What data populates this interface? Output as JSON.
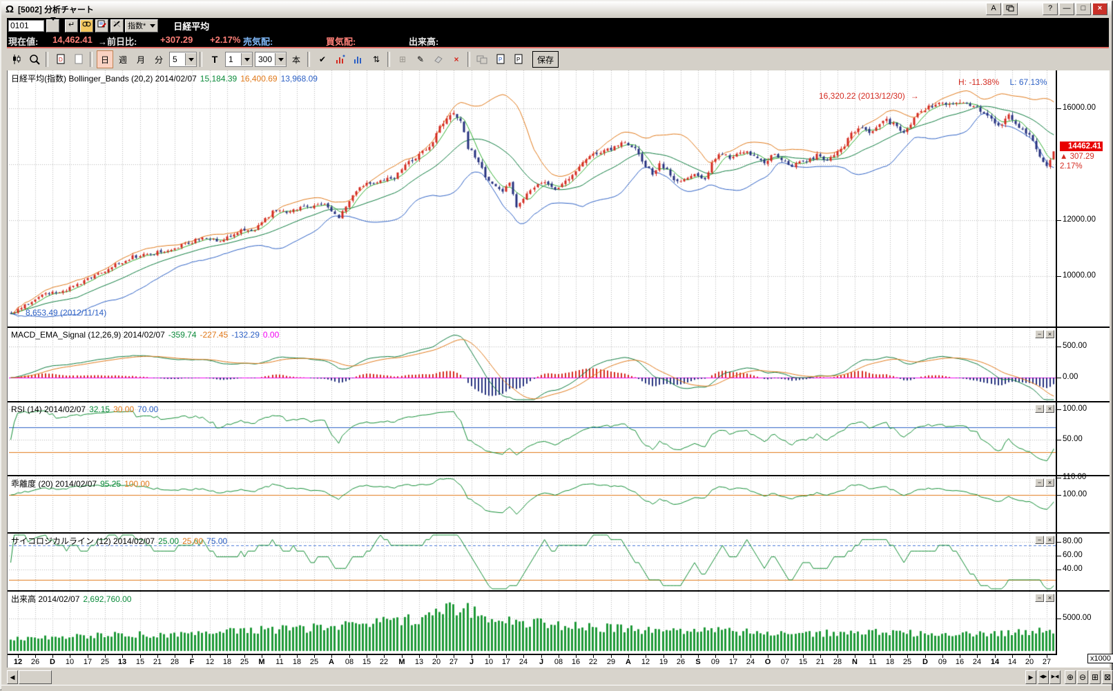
{
  "titlebar": {
    "title": "[5002] 分析チャート",
    "buttons": {
      "a": "A",
      "help": "?",
      "minimize": "—",
      "maximize": "□",
      "close": "×"
    }
  },
  "quote": {
    "code": "0101",
    "type_select": "指数*",
    "name": "日経平均",
    "enter_icon": "↵",
    "label_current": "現在値:",
    "current": "14,462.41",
    "label_change": "→前日比:",
    "change": "+307.29",
    "change_pct": "+2.17%",
    "label_ask": "売気配:",
    "label_bid": "買気配:",
    "label_volume": "出来高:"
  },
  "toolbar": {
    "day": "日",
    "week": "週",
    "month": "月",
    "minute": "分",
    "minute_value": "5",
    "text_t": "T",
    "from_value": "1",
    "bars_value": "300",
    "bars_unit": "本",
    "check": "✔",
    "updown": "⇅",
    "grid": "⊞",
    "pencil": "✎",
    "delete": "×",
    "save": "保存"
  },
  "panels": {
    "price": {
      "title": "日経平均(指数) Bollinger_Bands (20,2) 2014/02/07",
      "v1": "15,184.39",
      "v2": "16,400.69",
      "v3": "13,968.09",
      "high_label": "H: -11.38%",
      "low_label": "L: 67.13%",
      "peak_label": "16,320.22 (2013/12/30)",
      "peak_arrow": "→",
      "trough_arrow": "←",
      "trough_label": "8,653.49 (2012/11/14)",
      "axis": [
        {
          "v": 16000,
          "t": "16000.00"
        },
        {
          "v": 12000,
          "t": "12000.00"
        },
        {
          "v": 10000,
          "t": "10000.00"
        }
      ],
      "box": {
        "price": "14462.41",
        "arrow": "▲",
        "change": "307.29",
        "pct": "2.17%"
      }
    },
    "macd": {
      "title": "MACD_EMA_Signal (12,26,9) 2014/02/07",
      "v1": "-359.74",
      "v2": "-227.45",
      "v3": "-132.29",
      "v4": "0.00",
      "axis": [
        {
          "v": 500,
          "t": "500.00"
        },
        {
          "v": 0,
          "t": "0.00"
        }
      ]
    },
    "rsi": {
      "title": "RSI (14) 2014/02/07",
      "v1": "32.15",
      "v2": "30.00",
      "v3": "70.00",
      "axis": [
        {
          "v": 100,
          "t": "100.00"
        },
        {
          "v": 50,
          "t": "50.00"
        }
      ]
    },
    "kairi": {
      "title": "乖離度 (20) 2014/02/07",
      "v1": "95.25",
      "v2": "100.00",
      "axis": [
        {
          "v": 110,
          "t": "110.00"
        },
        {
          "v": 100,
          "t": "100.00"
        }
      ]
    },
    "psy": {
      "title": "サイコロジカルライン (12) 2014/02/07",
      "v1": "25.00",
      "v2": "25.00",
      "v3": "75.00",
      "axis": [
        {
          "v": 80,
          "t": "80.00"
        },
        {
          "v": 60,
          "t": "60.00"
        },
        {
          "v": 40,
          "t": "40.00"
        }
      ]
    },
    "volume": {
      "title": "出来高 2014/02/07",
      "v1": "2,692,760.00",
      "unit": "x1000",
      "axis": [
        {
          "v": 5000,
          "t": "5000.00"
        }
      ]
    }
  },
  "panel_buttons": {
    "min": "−",
    "close": "×"
  },
  "xaxis": {
    "labels": [
      "12",
      "26",
      "D",
      "10",
      "17",
      "25",
      "13",
      "15",
      "21",
      "28",
      "F",
      "12",
      "18",
      "25",
      "M",
      "11",
      "18",
      "25",
      "A",
      "08",
      "15",
      "22",
      "M",
      "13",
      "20",
      "27",
      "J",
      "10",
      "17",
      "24",
      "J",
      "08",
      "16",
      "22",
      "29",
      "A",
      "12",
      "19",
      "26",
      "S",
      "09",
      "17",
      "24",
      "O",
      "07",
      "15",
      "21",
      "28",
      "N",
      "11",
      "18",
      "25",
      "D",
      "09",
      "16",
      "24",
      "14",
      "14",
      "20",
      "27"
    ],
    "bold": [
      0,
      2,
      6,
      10,
      14,
      18,
      22,
      26,
      30,
      35,
      39,
      43,
      48,
      52,
      56
    ]
  },
  "nav": {
    "left": "◀",
    "right": "▶",
    "expand": "◀▶",
    "compress": "▶◀",
    "zoom_in": "⊕",
    "zoom_out": "⊖",
    "fit": "⊞",
    "close": "⊠"
  },
  "colors": {
    "up": "#d42a20",
    "down": "#27327f",
    "band_upper": "#e07818",
    "band_mid": "#0a7a3c",
    "band_lower": "#2b5fc4",
    "ma_fast": "#2fae2f",
    "macd": "#0a7a3c",
    "signal": "#e07818",
    "hist_pos": "#d42a20",
    "hist_neg": "#27327f",
    "zero": "#f000f0",
    "rsi": "#0f8c32",
    "kairi": "#0f8c32",
    "psy": "#0f8c32",
    "volume": "#1f9a38",
    "grid": "#b4b4b4",
    "current_box": "#e80000"
  },
  "chart_data": {
    "type": "candlestick",
    "bars": 300,
    "instrument": "日経平均 (Nikkei 225)",
    "as_of": "2014/02/07",
    "last": {
      "open": 14155.12,
      "close": 14462.41,
      "change": 307.29,
      "change_pct": 2.17
    },
    "period_high": {
      "value": 16320.22,
      "date": "2013/12/30",
      "pct_from_current": -11.38
    },
    "period_low": {
      "value": 8653.49,
      "date": "2012/11/14",
      "pct_from_current": 67.13
    },
    "peak_index": 272,
    "close_anchors": [
      [
        0,
        8653
      ],
      [
        5,
        9024
      ],
      [
        10,
        9366
      ],
      [
        15,
        9446
      ],
      [
        20,
        9737
      ],
      [
        25,
        10080
      ],
      [
        30,
        10395
      ],
      [
        35,
        10688
      ],
      [
        40,
        10801
      ],
      [
        45,
        10926
      ],
      [
        50,
        11153
      ],
      [
        55,
        11369
      ],
      [
        60,
        11251
      ],
      [
        65,
        11606
      ],
      [
        70,
        11662
      ],
      [
        75,
        12283
      ],
      [
        80,
        12338
      ],
      [
        85,
        12468
      ],
      [
        90,
        12636
      ],
      [
        94,
        12100
      ],
      [
        100,
        13200
      ],
      [
        105,
        13400
      ],
      [
        110,
        13550
      ],
      [
        115,
        14180
      ],
      [
        120,
        14600
      ],
      [
        123,
        15360
      ],
      [
        127,
        15850
      ],
      [
        129,
        15600
      ],
      [
        131,
        14612
      ],
      [
        134,
        14100
      ],
      [
        136,
        13589
      ],
      [
        139,
        13261
      ],
      [
        141,
        13015
      ],
      [
        143,
        13300
      ],
      [
        145,
        12445
      ],
      [
        148,
        12900
      ],
      [
        151,
        13240
      ],
      [
        154,
        13350
      ],
      [
        156,
        13100
      ],
      [
        158,
        13250
      ],
      [
        161,
        13600
      ],
      [
        164,
        14100
      ],
      [
        166,
        14310
      ],
      [
        169,
        14400
      ],
      [
        171,
        14506
      ],
      [
        174,
        14600
      ],
      [
        176,
        14808
      ],
      [
        179,
        14560
      ],
      [
        181,
        14130
      ],
      [
        184,
        13670
      ],
      [
        186,
        14050
      ],
      [
        189,
        13615
      ],
      [
        191,
        13365
      ],
      [
        194,
        13520
      ],
      [
        196,
        13660
      ],
      [
        199,
        13460
      ],
      [
        201,
        14090
      ],
      [
        204,
        14400
      ],
      [
        206,
        14220
      ],
      [
        209,
        14400
      ],
      [
        211,
        14455
      ],
      [
        214,
        14170
      ],
      [
        216,
        14024
      ],
      [
        219,
        14400
      ],
      [
        221,
        14200
      ],
      [
        224,
        13860
      ],
      [
        226,
        14090
      ],
      [
        229,
        14170
      ],
      [
        231,
        14330
      ],
      [
        234,
        14088
      ],
      [
        236,
        14400
      ],
      [
        239,
        14693
      ],
      [
        241,
        15050
      ],
      [
        244,
        15350
      ],
      [
        246,
        15166
      ],
      [
        249,
        15382
      ],
      [
        251,
        15587
      ],
      [
        254,
        15380
      ],
      [
        256,
        15165
      ],
      [
        259,
        15662
      ],
      [
        261,
        15870
      ],
      [
        264,
        16100
      ],
      [
        266,
        16300
      ],
      [
        269,
        16174
      ],
      [
        272,
        16291
      ],
      [
        275,
        16121
      ],
      [
        278,
        15908
      ],
      [
        281,
        15670
      ],
      [
        283,
        15384
      ],
      [
        286,
        15700
      ],
      [
        288,
        15392
      ],
      [
        291,
        15057
      ],
      [
        293,
        14914
      ],
      [
        295,
        14200
      ],
      [
        297,
        14008
      ],
      [
        298,
        14155.12
      ],
      [
        299,
        14462.41
      ]
    ],
    "volume_anchors": [
      [
        0,
        1900
      ],
      [
        15,
        2100
      ],
      [
        30,
        2600
      ],
      [
        45,
        2500
      ],
      [
        60,
        3000
      ],
      [
        75,
        3300
      ],
      [
        90,
        3600
      ],
      [
        100,
        4300
      ],
      [
        110,
        4600
      ],
      [
        120,
        5000
      ],
      [
        126,
        6900
      ],
      [
        132,
        6100
      ],
      [
        140,
        4900
      ],
      [
        150,
        4400
      ],
      [
        160,
        3900
      ],
      [
        170,
        3600
      ],
      [
        180,
        3300
      ],
      [
        190,
        3100
      ],
      [
        200,
        3200
      ],
      [
        210,
        2900
      ],
      [
        220,
        2750
      ],
      [
        230,
        2600
      ],
      [
        240,
        2950
      ],
      [
        250,
        2800
      ],
      [
        260,
        2700
      ],
      [
        270,
        2400
      ],
      [
        280,
        2700
      ],
      [
        290,
        2850
      ],
      [
        296,
        3400
      ],
      [
        299,
        2692.76
      ]
    ],
    "volume_last": 2692.76,
    "indicators": {
      "bollinger": {
        "period": 20,
        "sigma": 2,
        "mid": 15184.39,
        "upper": 16400.69,
        "lower": 13968.09
      },
      "macd": {
        "fast": 12,
        "slow": 26,
        "signal": 9,
        "values": [
          -359.74,
          -227.45,
          -132.29,
          0.0
        ]
      },
      "rsi": {
        "period": 14,
        "value": 32.15,
        "lower_band": 30.0,
        "upper_band": 70.0
      },
      "kairi": {
        "period": 20,
        "value": 95.25,
        "base": 100.0
      },
      "psychological": {
        "period": 12,
        "value": 25.0,
        "lower_band": 25.0,
        "upper_band": 75.0
      }
    }
  }
}
